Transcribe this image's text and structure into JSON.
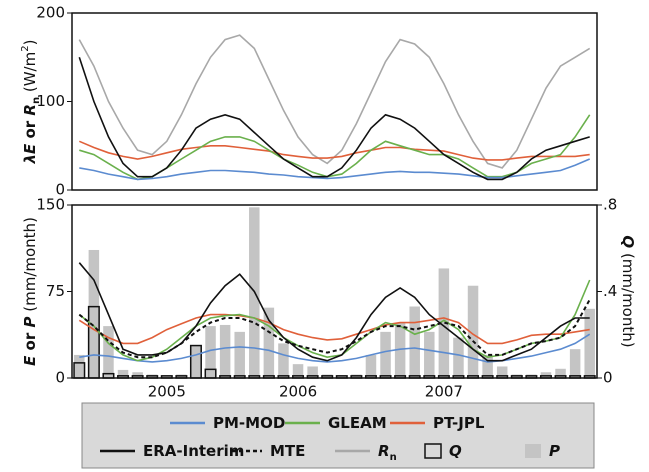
{
  "chart_data": [
    {
      "type": "line",
      "ylabel": [
        {
          "text": "λE",
          "style": "bi"
        },
        {
          "text": " or ",
          "style": "b"
        },
        {
          "text": "R",
          "style": "bi"
        },
        {
          "text": "n",
          "style": "bsub"
        },
        {
          "text": " (W/m",
          "style": ""
        },
        {
          "text": "2",
          "style": "sup"
        },
        {
          "text": ")",
          "style": ""
        }
      ],
      "ylim": [
        0,
        200
      ],
      "yticks": [
        0,
        100,
        200
      ],
      "series": [
        {
          "color": "#a8a8a8",
          "values": [
            170,
            140,
            100,
            70,
            45,
            40,
            55,
            85,
            120,
            150,
            170,
            175,
            160,
            125,
            90,
            60,
            40,
            30,
            45,
            75,
            110,
            145,
            170,
            165,
            150,
            120,
            85,
            55,
            30,
            25,
            45,
            80,
            115,
            140,
            150,
            160
          ]
        },
        {
          "color": "#e0603a",
          "values": [
            55,
            48,
            42,
            38,
            35,
            38,
            42,
            46,
            48,
            50,
            50,
            48,
            46,
            44,
            40,
            38,
            36,
            36,
            38,
            42,
            45,
            48,
            48,
            46,
            45,
            44,
            40,
            36,
            34,
            34,
            36,
            38,
            38,
            38,
            38,
            40
          ]
        },
        {
          "color": "#6ab04c",
          "values": [
            45,
            40,
            30,
            20,
            12,
            15,
            25,
            35,
            45,
            55,
            60,
            60,
            55,
            45,
            35,
            28,
            20,
            15,
            18,
            30,
            45,
            55,
            50,
            45,
            40,
            40,
            35,
            25,
            15,
            15,
            20,
            30,
            35,
            40,
            60,
            85
          ]
        },
        {
          "color": "#5b8bd0",
          "values": [
            25,
            22,
            18,
            15,
            12,
            13,
            15,
            18,
            20,
            22,
            22,
            21,
            20,
            18,
            17,
            15,
            14,
            13,
            14,
            16,
            18,
            20,
            21,
            20,
            20,
            19,
            18,
            16,
            14,
            14,
            16,
            18,
            20,
            22,
            28,
            35
          ]
        },
        {
          "color": "#111111",
          "values": [
            150,
            100,
            60,
            30,
            15,
            15,
            25,
            45,
            70,
            80,
            85,
            80,
            65,
            50,
            35,
            25,
            15,
            15,
            25,
            45,
            70,
            85,
            80,
            70,
            55,
            40,
            30,
            20,
            12,
            12,
            20,
            35,
            45,
            50,
            55,
            60
          ]
        }
      ]
    },
    {
      "type": "line-bar",
      "ylabel": [
        {
          "text": "E",
          "style": "bi"
        },
        {
          "text": " or ",
          "style": "b"
        },
        {
          "text": "P",
          "style": "bi"
        },
        {
          "text": " (mm/month)",
          "style": ""
        }
      ],
      "y2label": [
        {
          "text": "Q",
          "style": "bi"
        },
        {
          "text": " (mm/month)",
          "style": ""
        }
      ],
      "categories": [
        null,
        null,
        null,
        null,
        null,
        null,
        "2005",
        null,
        null,
        null,
        null,
        null,
        null,
        null,
        null,
        "2006",
        null,
        null,
        null,
        null,
        null,
        null,
        null,
        null,
        null,
        "2007",
        null,
        null,
        null,
        null,
        null,
        null,
        null,
        null,
        null,
        null
      ],
      "ylim": [
        0,
        150
      ],
      "yticks": [
        0,
        75,
        150
      ],
      "y2lim": [
        0,
        0.8
      ],
      "y2ticks": [
        0,
        {
          "value": 0.4,
          "label": ".4"
        },
        {
          "value": 0.8,
          "label": ".8"
        }
      ],
      "bars": [
        {
          "style": "fill",
          "color": "#c4c4c4",
          "values": [
            20,
            111,
            45,
            7,
            5,
            3,
            2,
            3,
            28,
            45,
            46,
            40,
            148,
            61,
            30,
            12,
            10,
            3,
            2,
            3,
            20,
            40,
            48,
            62,
            40,
            95,
            35,
            80,
            20,
            10,
            3,
            3,
            5,
            8,
            25,
            60
          ]
        },
        {
          "style": "outline",
          "color": "#111111",
          "axis": "y2",
          "values": [
            0.07,
            0.33,
            0.02,
            0.01,
            0.01,
            0.01,
            0.01,
            0.01,
            0.15,
            0.04,
            0.01,
            0.01,
            0.01,
            0.01,
            0.01,
            0.01,
            0.01,
            0.01,
            0.01,
            0.01,
            0.01,
            0.01,
            0.01,
            0.01,
            0.01,
            0.01,
            0.01,
            0.01,
            0.01,
            0.01,
            0.01,
            0.01,
            0.01,
            0.01,
            0.01,
            0.01
          ]
        }
      ],
      "series": [
        {
          "color": "#5b8bd0",
          "values": [
            18,
            20,
            19,
            17,
            15,
            14,
            15,
            17,
            20,
            24,
            26,
            27,
            26,
            24,
            20,
            17,
            15,
            14,
            15,
            17,
            20,
            23,
            25,
            26,
            24,
            22,
            20,
            17,
            14,
            15,
            17,
            19,
            22,
            25,
            30,
            38
          ]
        },
        {
          "color": "#e0603a",
          "values": [
            50,
            42,
            35,
            30,
            30,
            35,
            42,
            47,
            52,
            55,
            55,
            54,
            52,
            48,
            42,
            38,
            35,
            33,
            34,
            38,
            42,
            46,
            48,
            48,
            50,
            52,
            48,
            38,
            30,
            30,
            33,
            37,
            38,
            38,
            40,
            42
          ]
        },
        {
          "color": "#6ab04c",
          "values": [
            55,
            45,
            30,
            20,
            15,
            18,
            25,
            35,
            45,
            52,
            54,
            55,
            52,
            45,
            35,
            28,
            22,
            18,
            20,
            30,
            40,
            48,
            45,
            38,
            42,
            50,
            42,
            25,
            18,
            20,
            25,
            30,
            32,
            35,
            55,
            85
          ]
        },
        {
          "color": "#111111",
          "values": [
            100,
            85,
            55,
            25,
            20,
            20,
            22,
            30,
            45,
            65,
            80,
            90,
            75,
            50,
            35,
            25,
            18,
            15,
            20,
            35,
            55,
            70,
            78,
            70,
            55,
            45,
            35,
            25,
            15,
            15,
            20,
            25,
            35,
            45,
            52,
            52
          ]
        },
        {
          "color": "#111111",
          "dash": true,
          "values": [
            55,
            45,
            32,
            22,
            18,
            18,
            22,
            30,
            40,
            48,
            52,
            52,
            48,
            40,
            32,
            28,
            25,
            22,
            25,
            32,
            40,
            45,
            45,
            42,
            45,
            48,
            45,
            32,
            20,
            20,
            25,
            30,
            32,
            35,
            45,
            68
          ]
        }
      ]
    }
  ],
  "legend": [
    [
      {
        "name": [
          {
            "text": "PM-MOD",
            "style": "b"
          }
        ],
        "mark": "line",
        "color": "#5b8bd0"
      },
      {
        "name": [
          {
            "text": "GLEAM",
            "style": "b"
          }
        ],
        "mark": "line",
        "color": "#6ab04c"
      },
      {
        "name": [
          {
            "text": "PT-JPL",
            "style": "b"
          }
        ],
        "mark": "line",
        "color": "#e0603a"
      }
    ],
    [
      {
        "name": [
          {
            "text": "ERA-Interim",
            "style": "b"
          }
        ],
        "mark": "line",
        "color": "#111111"
      },
      {
        "name": [
          {
            "text": "MTE",
            "style": "b"
          }
        ],
        "mark": "dash",
        "color": "#111111"
      },
      {
        "name": [
          {
            "text": "R",
            "style": "bi"
          },
          {
            "text": "n",
            "style": "bsub"
          }
        ],
        "mark": "line",
        "color": "#a8a8a8"
      },
      {
        "name": [
          {
            "text": "Q",
            "style": "bi"
          }
        ],
        "mark": "box",
        "color": "#111111"
      },
      {
        "name": [
          {
            "text": "P",
            "style": "bi"
          }
        ],
        "mark": "square",
        "color": "#c4c4c4"
      }
    ]
  ]
}
